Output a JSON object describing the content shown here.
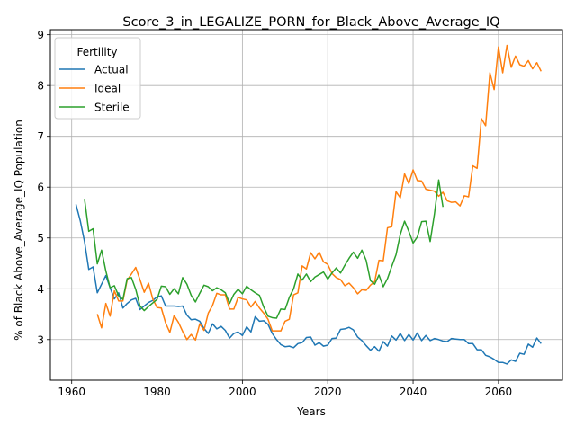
{
  "chart_data": {
    "type": "line",
    "title": "Score_3_in_LEGALIZE_PORN_for_Black_Above_Average_IQ",
    "xlabel": "Years",
    "ylabel": "% of Black Above_Average_IQ Population",
    "xlim": [
      1955,
      2075
    ],
    "ylim": [
      2.2,
      9.1
    ],
    "xticks": [
      1960,
      1980,
      2000,
      2020,
      2040,
      2060
    ],
    "yticks": [
      3,
      4,
      5,
      6,
      7,
      8,
      9
    ],
    "grid": true,
    "legend": {
      "title": "Fertility",
      "position": "top-left"
    },
    "series": [
      {
        "name": "Actual",
        "color": "#1f77b4",
        "points": [
          [
            1961,
            5.66
          ],
          [
            1962,
            5.34
          ],
          [
            1963,
            4.93
          ],
          [
            1964,
            4.38
          ],
          [
            1965,
            4.43
          ],
          [
            1966,
            3.92
          ],
          [
            1967,
            4.09
          ],
          [
            1968,
            4.26
          ],
          [
            1969,
            4.02
          ],
          [
            1970,
            3.8
          ],
          [
            1971,
            3.92
          ],
          [
            1972,
            3.62
          ],
          [
            1973,
            3.71
          ],
          [
            1974,
            3.78
          ],
          [
            1975,
            3.81
          ],
          [
            1976,
            3.59
          ],
          [
            1977,
            3.66
          ],
          [
            1978,
            3.73
          ],
          [
            1979,
            3.77
          ],
          [
            1980,
            3.84
          ],
          [
            1981,
            3.86
          ],
          [
            1982,
            3.66
          ],
          [
            1983,
            3.66
          ],
          [
            1984,
            3.66
          ],
          [
            1985,
            3.65
          ],
          [
            1986,
            3.66
          ],
          [
            1987,
            3.48
          ],
          [
            1988,
            3.39
          ],
          [
            1989,
            3.4
          ],
          [
            1990,
            3.36
          ],
          [
            1991,
            3.22
          ],
          [
            1992,
            3.12
          ],
          [
            1993,
            3.31
          ],
          [
            1994,
            3.21
          ],
          [
            1995,
            3.26
          ],
          [
            1996,
            3.18
          ],
          [
            1997,
            3.03
          ],
          [
            1998,
            3.12
          ],
          [
            1999,
            3.15
          ],
          [
            2000,
            3.08
          ],
          [
            2001,
            3.25
          ],
          [
            2002,
            3.15
          ],
          [
            2003,
            3.45
          ],
          [
            2004,
            3.36
          ],
          [
            2005,
            3.37
          ],
          [
            2006,
            3.3
          ],
          [
            2007,
            3.12
          ],
          [
            2008,
            3.0
          ],
          [
            2009,
            2.9
          ],
          [
            2010,
            2.86
          ],
          [
            2011,
            2.87
          ],
          [
            2012,
            2.84
          ],
          [
            2013,
            2.92
          ],
          [
            2014,
            2.94
          ],
          [
            2015,
            3.04
          ],
          [
            2016,
            3.05
          ],
          [
            2017,
            2.89
          ],
          [
            2018,
            2.94
          ],
          [
            2019,
            2.87
          ],
          [
            2020,
            2.89
          ],
          [
            2021,
            3.02
          ],
          [
            2022,
            3.03
          ],
          [
            2023,
            3.2
          ],
          [
            2024,
            3.21
          ],
          [
            2025,
            3.24
          ],
          [
            2026,
            3.19
          ],
          [
            2027,
            3.05
          ],
          [
            2028,
            2.98
          ],
          [
            2029,
            2.88
          ],
          [
            2030,
            2.79
          ],
          [
            2031,
            2.86
          ],
          [
            2032,
            2.77
          ],
          [
            2033,
            2.96
          ],
          [
            2034,
            2.87
          ],
          [
            2035,
            3.07
          ],
          [
            2036,
            2.99
          ],
          [
            2037,
            3.12
          ],
          [
            2038,
            2.98
          ],
          [
            2039,
            3.1
          ],
          [
            2040,
            2.99
          ],
          [
            2041,
            3.13
          ],
          [
            2042,
            2.98
          ],
          [
            2043,
            3.08
          ],
          [
            2044,
            2.98
          ],
          [
            2045,
            3.02
          ],
          [
            2046,
            3.0
          ],
          [
            2047,
            2.97
          ],
          [
            2048,
            2.96
          ],
          [
            2049,
            3.02
          ],
          [
            2050,
            3.01
          ],
          [
            2051,
            3.0
          ],
          [
            2052,
            3.0
          ],
          [
            2053,
            2.92
          ],
          [
            2054,
            2.92
          ],
          [
            2055,
            2.8
          ],
          [
            2056,
            2.8
          ],
          [
            2057,
            2.69
          ],
          [
            2058,
            2.66
          ],
          [
            2059,
            2.61
          ],
          [
            2060,
            2.55
          ],
          [
            2061,
            2.55
          ],
          [
            2062,
            2.52
          ],
          [
            2063,
            2.6
          ],
          [
            2064,
            2.57
          ],
          [
            2065,
            2.73
          ],
          [
            2066,
            2.71
          ],
          [
            2067,
            2.91
          ],
          [
            2068,
            2.85
          ],
          [
            2069,
            3.03
          ],
          [
            2070,
            2.92
          ]
        ]
      },
      {
        "name": "Ideal",
        "color": "#ff7f0e",
        "points": [
          [
            1966,
            3.5
          ],
          [
            1967,
            3.23
          ],
          [
            1968,
            3.71
          ],
          [
            1969,
            3.46
          ],
          [
            1970,
            3.96
          ],
          [
            1971,
            3.76
          ],
          [
            1972,
            3.76
          ],
          [
            1973,
            4.17
          ],
          [
            1974,
            4.29
          ],
          [
            1975,
            4.42
          ],
          [
            1976,
            4.18
          ],
          [
            1977,
            3.93
          ],
          [
            1978,
            4.11
          ],
          [
            1979,
            3.8
          ],
          [
            1980,
            3.63
          ],
          [
            1981,
            3.62
          ],
          [
            1982,
            3.33
          ],
          [
            1983,
            3.14
          ],
          [
            1984,
            3.47
          ],
          [
            1985,
            3.34
          ],
          [
            1986,
            3.16
          ],
          [
            1987,
            3.0
          ],
          [
            1988,
            3.1
          ],
          [
            1989,
            2.99
          ],
          [
            1990,
            3.31
          ],
          [
            1991,
            3.18
          ],
          [
            1992,
            3.52
          ],
          [
            1993,
            3.67
          ],
          [
            1994,
            3.91
          ],
          [
            1995,
            3.88
          ],
          [
            1996,
            3.88
          ],
          [
            1997,
            3.6
          ],
          [
            1998,
            3.6
          ],
          [
            1999,
            3.83
          ],
          [
            2000,
            3.8
          ],
          [
            2001,
            3.78
          ],
          [
            2002,
            3.64
          ],
          [
            2003,
            3.75
          ],
          [
            2004,
            3.62
          ],
          [
            2005,
            3.52
          ],
          [
            2006,
            3.4
          ],
          [
            2007,
            3.17
          ],
          [
            2008,
            3.17
          ],
          [
            2009,
            3.17
          ],
          [
            2010,
            3.36
          ],
          [
            2011,
            3.4
          ],
          [
            2012,
            3.88
          ],
          [
            2013,
            3.92
          ],
          [
            2014,
            4.45
          ],
          [
            2015,
            4.39
          ],
          [
            2016,
            4.71
          ],
          [
            2017,
            4.59
          ],
          [
            2018,
            4.72
          ],
          [
            2019,
            4.53
          ],
          [
            2020,
            4.48
          ],
          [
            2021,
            4.3
          ],
          [
            2022,
            4.22
          ],
          [
            2023,
            4.18
          ],
          [
            2024,
            4.06
          ],
          [
            2025,
            4.11
          ],
          [
            2026,
            4.02
          ],
          [
            2027,
            3.9
          ],
          [
            2028,
            3.98
          ],
          [
            2029,
            3.97
          ],
          [
            2030,
            4.07
          ],
          [
            2031,
            4.14
          ],
          [
            2032,
            4.56
          ],
          [
            2033,
            4.55
          ],
          [
            2034,
            5.2
          ],
          [
            2035,
            5.22
          ],
          [
            2036,
            5.91
          ],
          [
            2037,
            5.79
          ],
          [
            2038,
            6.26
          ],
          [
            2039,
            6.07
          ],
          [
            2040,
            6.34
          ],
          [
            2041,
            6.13
          ],
          [
            2042,
            6.12
          ],
          [
            2043,
            5.96
          ],
          [
            2044,
            5.94
          ],
          [
            2045,
            5.92
          ],
          [
            2046,
            5.82
          ],
          [
            2047,
            5.9
          ],
          [
            2048,
            5.73
          ],
          [
            2049,
            5.7
          ],
          [
            2050,
            5.71
          ],
          [
            2051,
            5.63
          ],
          [
            2052,
            5.83
          ],
          [
            2053,
            5.81
          ],
          [
            2054,
            6.42
          ],
          [
            2055,
            6.37
          ],
          [
            2056,
            7.35
          ],
          [
            2057,
            7.21
          ],
          [
            2058,
            8.25
          ],
          [
            2059,
            7.92
          ],
          [
            2060,
            8.76
          ],
          [
            2061,
            8.25
          ],
          [
            2062,
            8.79
          ],
          [
            2063,
            8.36
          ],
          [
            2064,
            8.58
          ],
          [
            2065,
            8.41
          ],
          [
            2066,
            8.38
          ],
          [
            2067,
            8.49
          ],
          [
            2068,
            8.33
          ],
          [
            2069,
            8.45
          ],
          [
            2070,
            8.28
          ]
        ]
      },
      {
        "name": "Sterile",
        "color": "#2ca02c",
        "points": [
          [
            1963,
            5.77
          ],
          [
            1964,
            5.13
          ],
          [
            1965,
            5.18
          ],
          [
            1966,
            4.49
          ],
          [
            1967,
            4.76
          ],
          [
            1968,
            4.35
          ],
          [
            1969,
            4.02
          ],
          [
            1970,
            4.06
          ],
          [
            1971,
            3.86
          ],
          [
            1972,
            3.79
          ],
          [
            1973,
            4.2
          ],
          [
            1974,
            4.22
          ],
          [
            1975,
            3.99
          ],
          [
            1976,
            3.66
          ],
          [
            1977,
            3.57
          ],
          [
            1978,
            3.65
          ],
          [
            1979,
            3.72
          ],
          [
            1980,
            3.79
          ],
          [
            1981,
            4.05
          ],
          [
            1982,
            4.04
          ],
          [
            1983,
            3.89
          ],
          [
            1984,
            4.0
          ],
          [
            1985,
            3.9
          ],
          [
            1986,
            4.22
          ],
          [
            1987,
            4.09
          ],
          [
            1988,
            3.87
          ],
          [
            1989,
            3.74
          ],
          [
            1990,
            3.91
          ],
          [
            1991,
            4.07
          ],
          [
            1992,
            4.04
          ],
          [
            1993,
            3.96
          ],
          [
            1994,
            4.02
          ],
          [
            1995,
            3.98
          ],
          [
            1996,
            3.92
          ],
          [
            1997,
            3.71
          ],
          [
            1998,
            3.89
          ],
          [
            1999,
            3.99
          ],
          [
            2000,
            3.9
          ],
          [
            2001,
            4.05
          ],
          [
            2002,
            3.98
          ],
          [
            2003,
            3.92
          ],
          [
            2004,
            3.87
          ],
          [
            2005,
            3.64
          ],
          [
            2006,
            3.46
          ],
          [
            2007,
            3.43
          ],
          [
            2008,
            3.42
          ],
          [
            2009,
            3.6
          ],
          [
            2010,
            3.59
          ],
          [
            2011,
            3.83
          ],
          [
            2012,
            4.0
          ],
          [
            2013,
            4.29
          ],
          [
            2014,
            4.17
          ],
          [
            2015,
            4.29
          ],
          [
            2016,
            4.14
          ],
          [
            2017,
            4.23
          ],
          [
            2018,
            4.28
          ],
          [
            2019,
            4.33
          ],
          [
            2020,
            4.19
          ],
          [
            2021,
            4.31
          ],
          [
            2022,
            4.41
          ],
          [
            2023,
            4.31
          ],
          [
            2024,
            4.46
          ],
          [
            2025,
            4.6
          ],
          [
            2026,
            4.72
          ],
          [
            2027,
            4.6
          ],
          [
            2028,
            4.76
          ],
          [
            2029,
            4.56
          ],
          [
            2030,
            4.16
          ],
          [
            2031,
            4.09
          ],
          [
            2032,
            4.27
          ],
          [
            2033,
            4.04
          ],
          [
            2034,
            4.2
          ],
          [
            2035,
            4.44
          ],
          [
            2036,
            4.67
          ],
          [
            2037,
            5.07
          ],
          [
            2038,
            5.33
          ],
          [
            2039,
            5.13
          ],
          [
            2040,
            4.9
          ],
          [
            2041,
            5.02
          ],
          [
            2042,
            5.32
          ],
          [
            2043,
            5.33
          ],
          [
            2044,
            4.93
          ],
          [
            2045,
            5.47
          ],
          [
            2046,
            6.14
          ],
          [
            2047,
            5.61
          ]
        ]
      }
    ]
  }
}
